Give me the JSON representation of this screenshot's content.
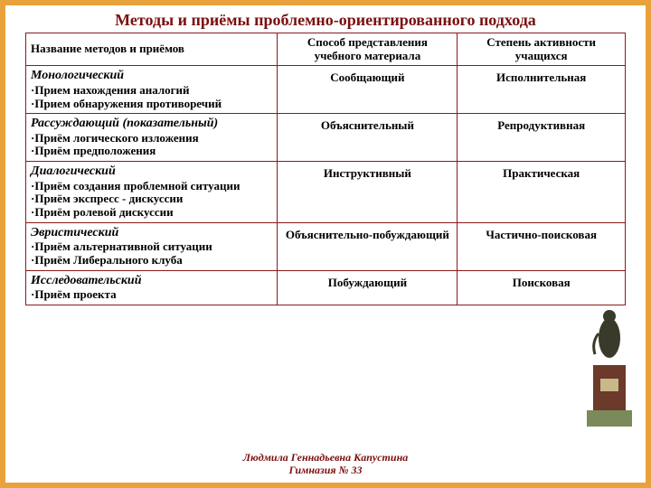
{
  "title": "Методы и приёмы проблемно-ориентированного подхода",
  "colors": {
    "frame_border": "#e9a23b",
    "title_color": "#7b0f0f",
    "table_border": "#8b1a1a",
    "text_color": "#000000",
    "footer_color": "#7b0f0f",
    "background": "#ffffff"
  },
  "columns": [
    "Название методов и приёмов",
    "Способ представления учебного материала",
    "Степень активности учащихся"
  ],
  "rows": [
    {
      "name": "Монологический",
      "bullets": [
        "Прием нахождения аналогий",
        "Прием обнаружения противоречий"
      ],
      "c2": "Сообщающий",
      "c3": "Исполнительная"
    },
    {
      "name": "Рассуждающий (показательный)",
      "bullets": [
        "Приём логического изложения",
        "Приём предположения"
      ],
      "c2": "Объяснительный",
      "c3": "Репродуктивная"
    },
    {
      "name": "Диалогический",
      "bullets": [
        "Приём создания проблемной ситуации",
        "Приём экспресс - дискуссии",
        "Приём ролевой дискуссии"
      ],
      "c2": "Инструктивный",
      "c3": "Практическая"
    },
    {
      "name": "Эвристический",
      "bullets": [
        "Приём альтернативной ситуации",
        "Приём Либерального клуба"
      ],
      "c2": "Объяснительно-побуждающий",
      "c3": "Частично-поисковая"
    },
    {
      "name": "Исследовательский",
      "bullets": [
        "Приём проекта"
      ],
      "c2": "Побуждающий",
      "c3": "Поисковая"
    }
  ],
  "footer_line1": "Людмила Геннадьевна Капустина",
  "footer_line2": "Гимназия № 33",
  "monument": {
    "pedestal_color": "#6b3a2a",
    "base_color": "#7a8a5a",
    "statue_color": "#3a3a2a",
    "plaque_color": "#c9b88a"
  }
}
